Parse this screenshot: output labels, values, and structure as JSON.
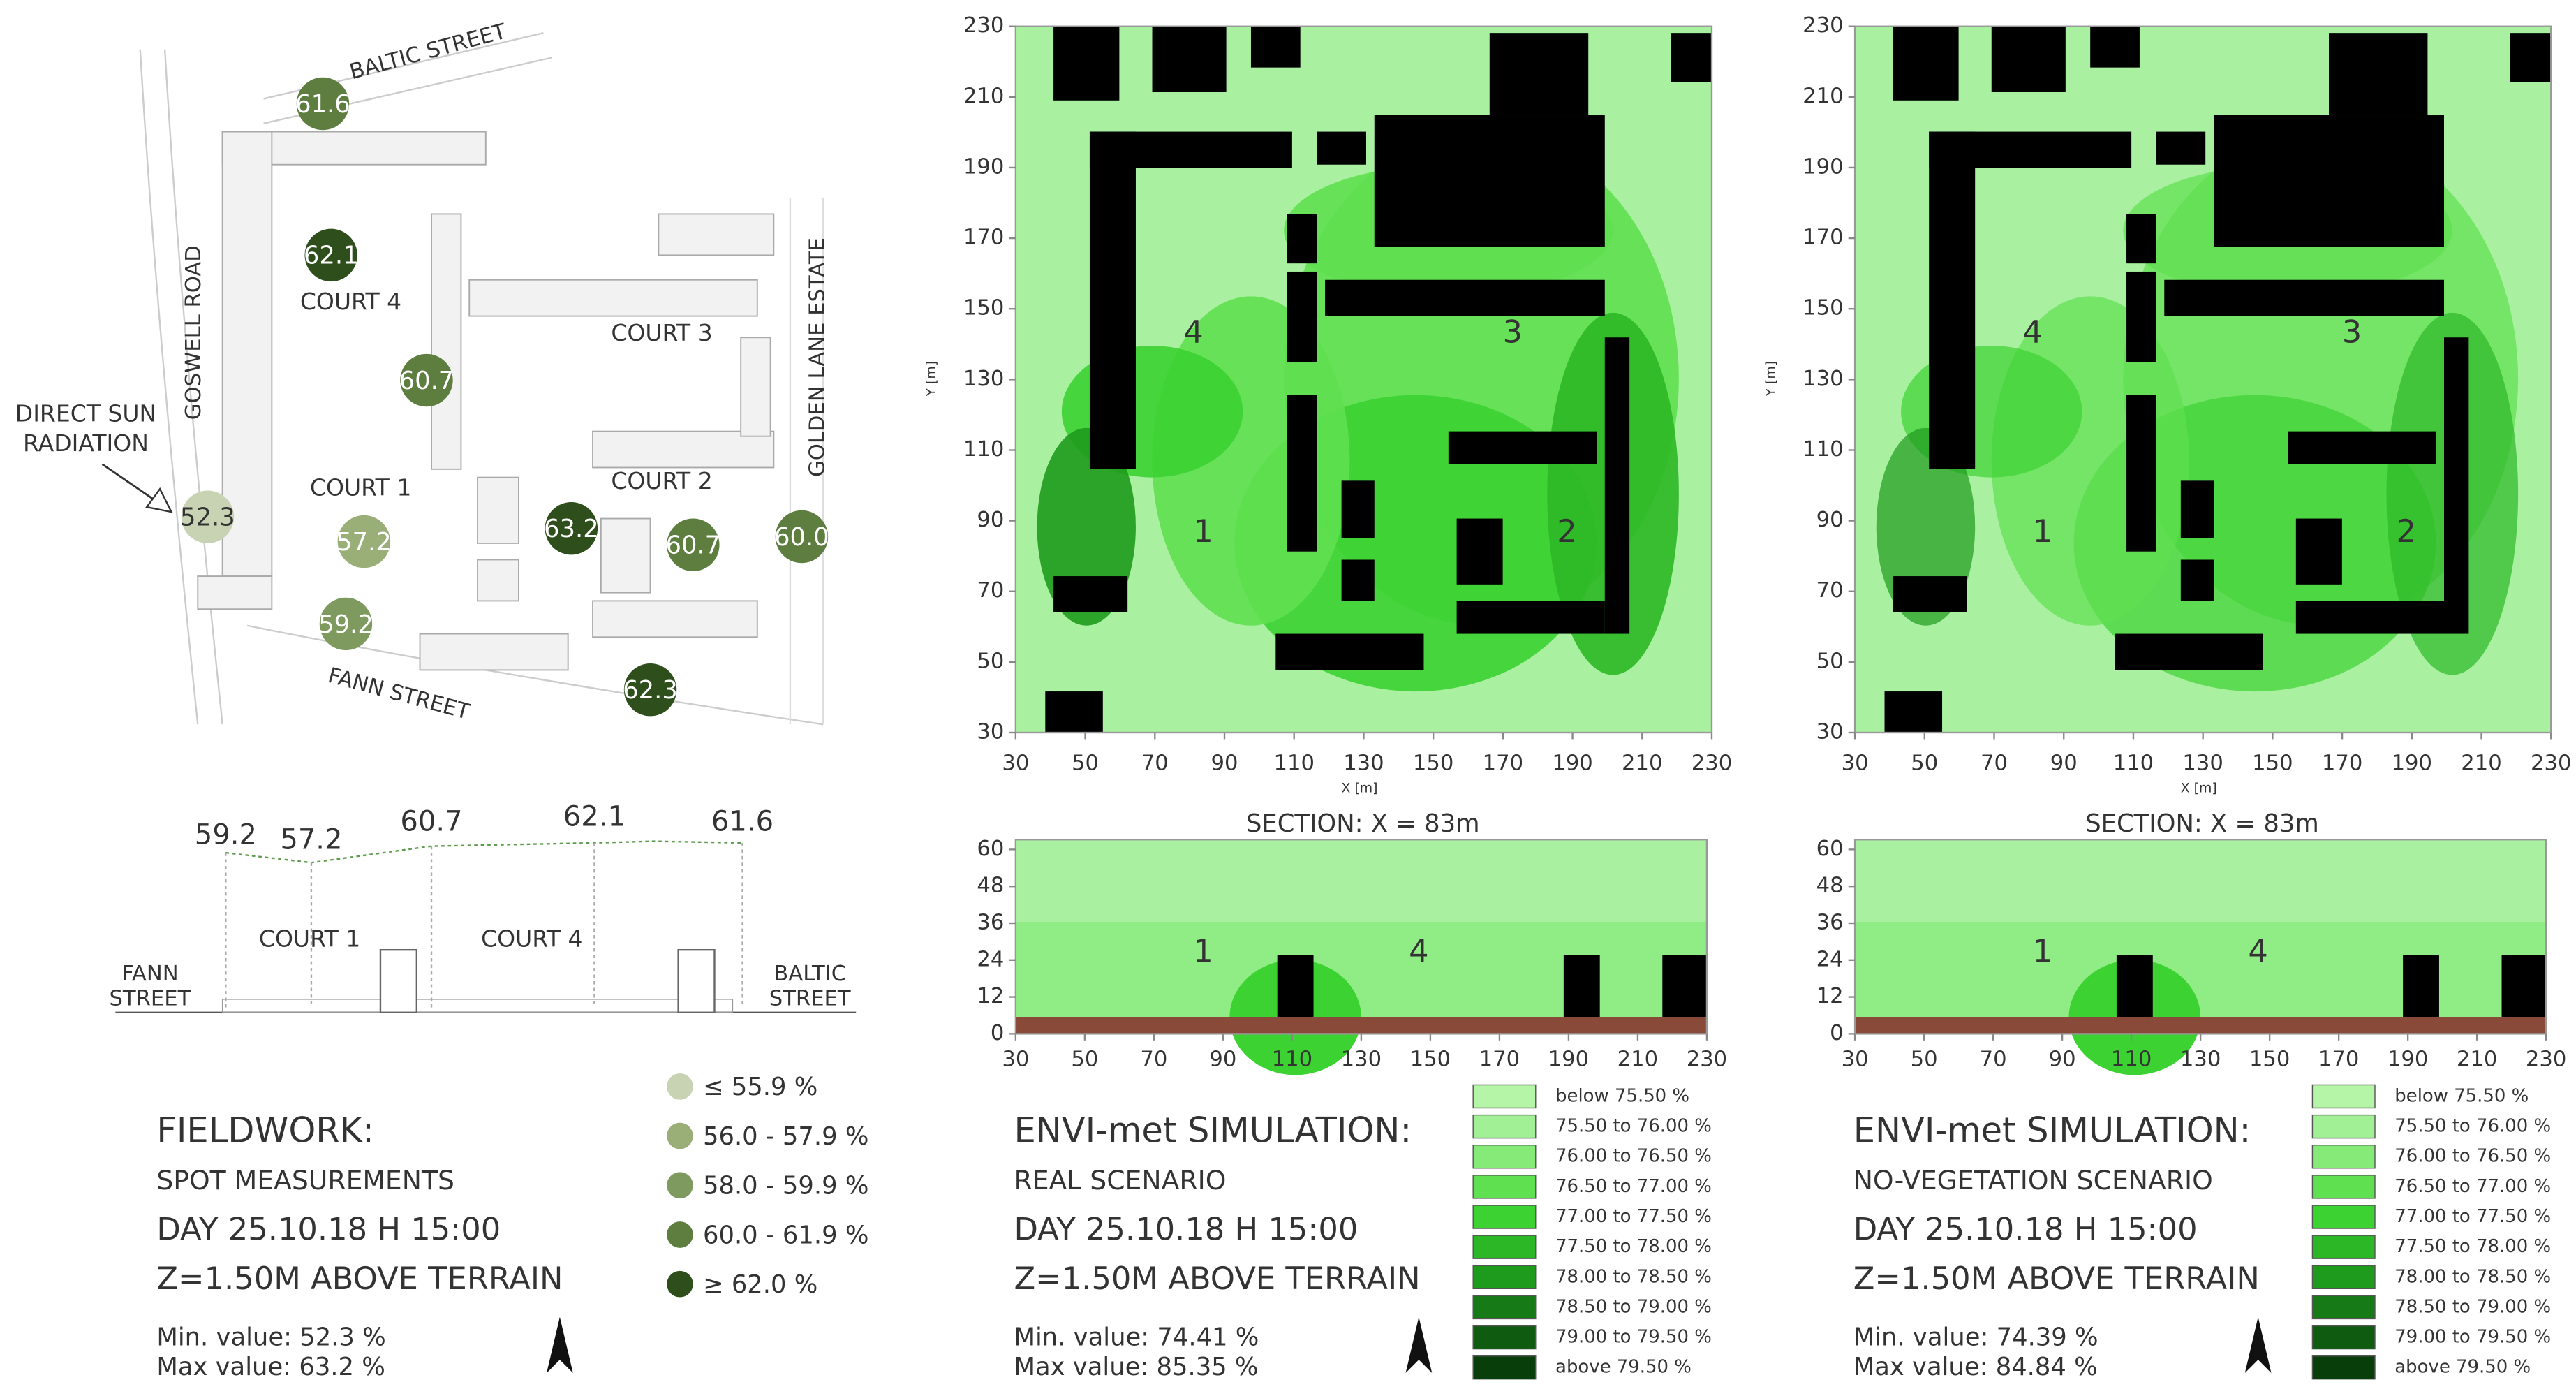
{
  "fieldwork": {
    "map": {
      "streets": [
        "BALTIC STREET",
        "GOSWELL ROAD",
        "GOLDEN LANE ESTATE",
        "FANN STREET"
      ],
      "courts": [
        "COURT 4",
        "COURT 3",
        "COURT 1",
        "COURT 2"
      ],
      "annotation": [
        "DIRECT SUN",
        "RADIATION"
      ],
      "points": [
        "52.3",
        "61.6",
        "62.1",
        "60.7",
        "57.2",
        "59.2",
        "63.2",
        "60.7",
        "60.0",
        "62.3"
      ]
    },
    "section": {
      "values": [
        "59.2",
        "57.2",
        "60.7",
        "62.1",
        "61.6"
      ],
      "courts": [
        "COURT 1",
        "COURT 4"
      ],
      "ends": [
        [
          "FANN",
          "STREET"
        ],
        [
          "BALTIC",
          "STREET"
        ]
      ]
    },
    "legend": [
      "≤ 55.9 %",
      "56.0 - 57.9 %",
      "58.0 - 59.9 %",
      "60.0 - 61.9 %",
      "≥ 62.0 %"
    ],
    "caption": {
      "title": "FIELDWORK:",
      "lines": [
        "SPOT MEASUREMENTS",
        "DAY 25.10.18 H 15:00",
        "Z=1.50M ABOVE TERRAIN"
      ],
      "min": "Min. value: 52.3 %",
      "max": "Max value: 63.2 %"
    }
  },
  "simulations": [
    {
      "plan": {
        "xticks": [
          30,
          50,
          70,
          90,
          110,
          130,
          150,
          170,
          190,
          210,
          230
        ],
        "yticks": [
          30,
          50,
          70,
          90,
          110,
          130,
          150,
          170,
          190,
          210,
          230
        ],
        "xlabel": "X [m]",
        "ylabel": "Y [m]",
        "zones": [
          "4",
          "3",
          "1",
          "2"
        ]
      },
      "section": {
        "title": "SECTION: X = 83m",
        "yticks": [
          0,
          12,
          24,
          36,
          48,
          60
        ],
        "xticks": [
          30,
          50,
          70,
          90,
          110,
          130,
          150,
          170,
          190,
          210,
          230
        ],
        "zones": [
          "1",
          "4"
        ]
      },
      "legend": [
        "below 75.50 %",
        "75.50 to 76.00 %",
        "76.00 to 76.50 %",
        "76.50 to 77.00 %",
        "77.00 to 77.50 %",
        "77.50 to 78.00 %",
        "78.00 to 78.50 %",
        "78.50 to 79.00 %",
        "79.00 to 79.50 %",
        "above 79.50 %"
      ],
      "caption": {
        "title": "ENVI-met SIMULATION:",
        "lines": [
          "REAL SCENARIO",
          "DAY 25.10.18 H 15:00",
          "Z=1.50M ABOVE TERRAIN"
        ],
        "min": "Min. value: 74.41 %",
        "max": "Max value: 85.35 %"
      }
    },
    {
      "plan": {
        "xticks": [
          30,
          50,
          70,
          90,
          110,
          130,
          150,
          170,
          190,
          210,
          230
        ],
        "yticks": [
          30,
          50,
          70,
          90,
          110,
          130,
          150,
          170,
          190,
          210,
          230
        ],
        "xlabel": "X [m]",
        "ylabel": "Y [m]",
        "zones": [
          "4",
          "3",
          "1",
          "2"
        ]
      },
      "section": {
        "title": "SECTION: X = 83m",
        "yticks": [
          0,
          12,
          24,
          36,
          48,
          60
        ],
        "xticks": [
          30,
          50,
          70,
          90,
          110,
          130,
          150,
          170,
          190,
          210,
          230
        ],
        "zones": [
          "1",
          "4"
        ]
      },
      "legend": [
        "below 75.50 %",
        "75.50 to 76.00 %",
        "76.00 to 76.50 %",
        "76.50 to 77.00 %",
        "77.00 to 77.50 %",
        "77.50 to 78.00 %",
        "78.00 to 78.50 %",
        "78.50 to 79.00 %",
        "79.00 to 79.50 %",
        "above 79.50 %"
      ],
      "caption": {
        "title": "ENVI-met SIMULATION:",
        "lines": [
          "NO-VEGETATION SCENARIO",
          "DAY 25.10.18 H 15:00",
          "Z=1.50M ABOVE TERRAIN"
        ],
        "min": "Min. value: 74.39 %",
        "max": "Max value: 84.84 %"
      }
    }
  ]
}
